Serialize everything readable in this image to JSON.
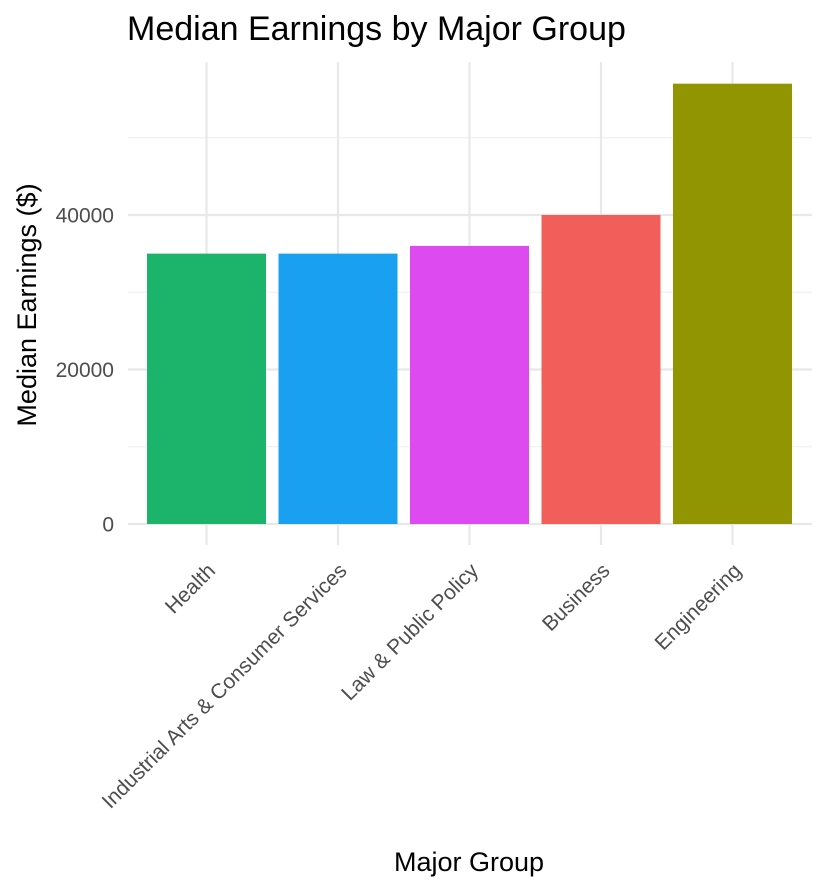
{
  "chart_data": {
    "type": "bar",
    "title": "Median Earnings by Major Group",
    "xlabel": "Major Group",
    "ylabel": "Median Earnings ($)",
    "categories": [
      "Health",
      "Industrial Arts & Consumer Services",
      "Law & Public Policy",
      "Business",
      "Engineering"
    ],
    "values": [
      35000,
      35000,
      36000,
      40000,
      57000
    ],
    "colors": [
      "#1BB46A",
      "#19A0F0",
      "#DD4AF0",
      "#F25E5A",
      "#929502"
    ],
    "ylim": [
      0,
      60000
    ],
    "yticks": [
      0,
      20000,
      40000
    ],
    "ytick_labels": [
      "0",
      "20000",
      "40000"
    ],
    "grid": true,
    "legend": "none"
  }
}
